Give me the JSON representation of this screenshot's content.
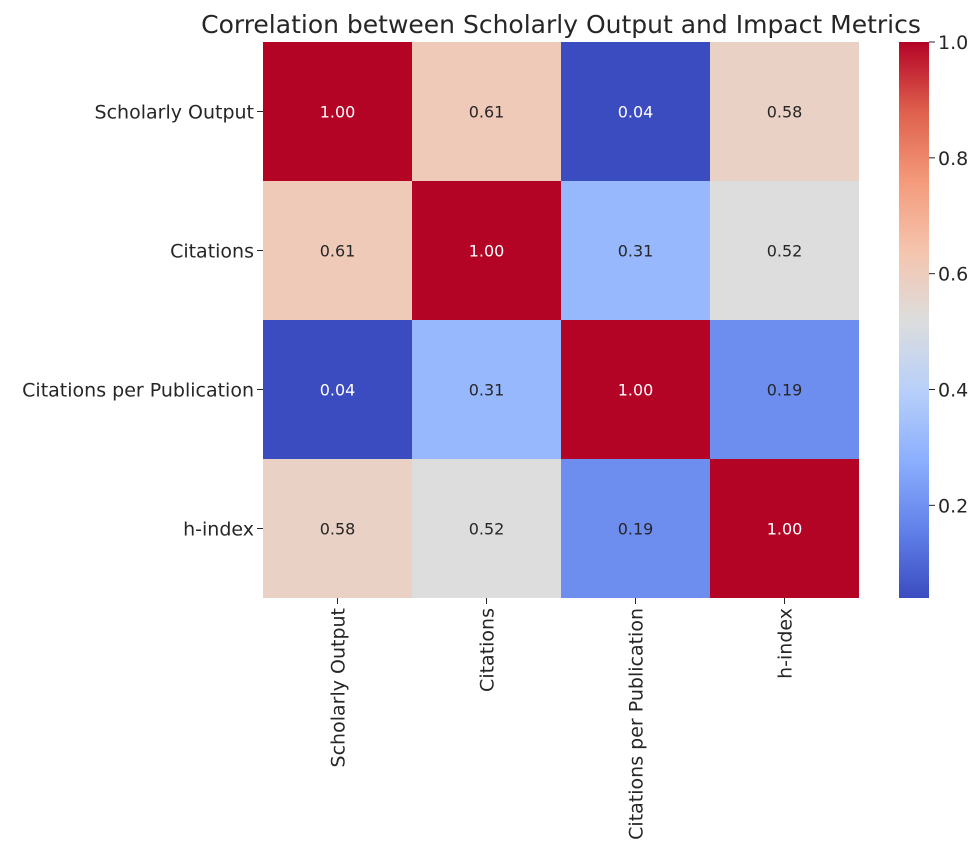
{
  "chart_data": {
    "type": "heatmap",
    "title": "Correlation between Scholarly Output and Impact Metrics",
    "rows": [
      "Scholarly Output",
      "Citations",
      "Citations per Publication",
      "h-index"
    ],
    "cols": [
      "Scholarly Output",
      "Citations",
      "Citations per Publication",
      "h-index"
    ],
    "values": [
      [
        1.0,
        0.61,
        0.04,
        0.58
      ],
      [
        0.61,
        1.0,
        0.31,
        0.52
      ],
      [
        0.04,
        0.31,
        1.0,
        0.19
      ],
      [
        0.58,
        0.52,
        0.19,
        1.0
      ]
    ],
    "cell_labels": [
      [
        "1.00",
        "0.61",
        "0.04",
        "0.58"
      ],
      [
        "0.61",
        "1.00",
        "0.31",
        "0.52"
      ],
      [
        "0.04",
        "0.31",
        "1.00",
        "0.19"
      ],
      [
        "0.58",
        "0.52",
        "0.19",
        "1.00"
      ]
    ],
    "colormap": "coolwarm",
    "colorbar": {
      "range": [
        0.04,
        1.0
      ],
      "ticks": [
        0.2,
        0.4,
        0.6,
        0.8,
        1.0
      ],
      "tick_labels": [
        "0.2",
        "0.4",
        "0.6",
        "0.8",
        "1.0"
      ]
    }
  }
}
